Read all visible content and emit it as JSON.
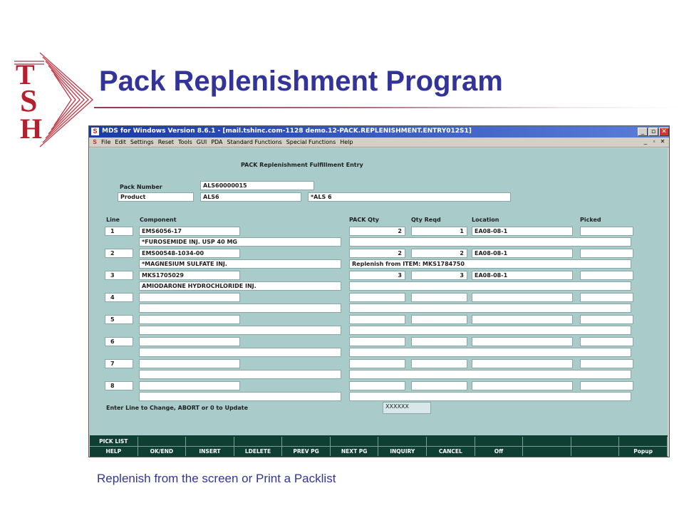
{
  "slide": {
    "title": "Pack Replenishment Program",
    "caption": "Replenish from the screen or Print a Packlist",
    "logo_letters": "TSH"
  },
  "window": {
    "title": "MDS for Windows Version 8.6.1 - [mail.tshinc.com-1128 demo.12-PACK.REPLENISHMENT.ENTRY012S1]",
    "controls": {
      "minimize": "_",
      "restore": "▫",
      "close": "✕"
    },
    "menu": [
      "File",
      "Edit",
      "Settings",
      "Reset",
      "Tools",
      "GUI",
      "PDA",
      "Standard Functions",
      "Special Functions",
      "Help"
    ],
    "mdi_controls": [
      "_",
      "▫",
      "✕"
    ]
  },
  "form": {
    "heading": "PACK Replenishment Fulfillment Entry",
    "pack_number_label": "Pack Number",
    "pack_number": "ALS60000015",
    "product_label": "Product",
    "product_code": "ALS6",
    "product_desc": "*ALS 6",
    "columns": {
      "line": "Line",
      "component": "Component",
      "pack_qty": "PACK Qty",
      "qty_reqd": "Qty Reqd",
      "location": "Location",
      "picked": "Picked"
    },
    "lines": [
      {
        "line": "1",
        "component": "EMS6056-17",
        "description": "*FUROSEMIDE INJ. USP 40 MG",
        "pack_qty": "2",
        "qty_reqd": "1",
        "location": "EA08-08-1",
        "picked": "",
        "note": ""
      },
      {
        "line": "2",
        "component": "EMS00548-1034-00",
        "description": "*MAGNESIUM SULFATE INJ.",
        "pack_qty": "2",
        "qty_reqd": "2",
        "location": "EA08-08-1",
        "picked": "",
        "note": "Replenish from ITEM: MKS1784750"
      },
      {
        "line": "3",
        "component": "MKS1705029",
        "description": "AMIODARONE HYDROCHLORIDE INJ.",
        "pack_qty": "3",
        "qty_reqd": "3",
        "location": "EA08-08-1",
        "picked": "",
        "note": ""
      },
      {
        "line": "4",
        "component": "",
        "description": "",
        "pack_qty": "",
        "qty_reqd": "",
        "location": "",
        "picked": "",
        "note": ""
      },
      {
        "line": "5",
        "component": "",
        "description": "",
        "pack_qty": "",
        "qty_reqd": "",
        "location": "",
        "picked": "",
        "note": ""
      },
      {
        "line": "6",
        "component": "",
        "description": "",
        "pack_qty": "",
        "qty_reqd": "",
        "location": "",
        "picked": "",
        "note": ""
      },
      {
        "line": "7",
        "component": "",
        "description": "",
        "pack_qty": "",
        "qty_reqd": "",
        "location": "",
        "picked": "",
        "note": ""
      },
      {
        "line": "8",
        "component": "",
        "description": "",
        "pack_qty": "",
        "qty_reqd": "",
        "location": "",
        "picked": "",
        "note": ""
      }
    ],
    "prompt": "Enter Line to Change, ABORT or 0 to Update",
    "input_value": "XXXXXX"
  },
  "function_keys": {
    "row1": [
      "PICK LIST",
      "",
      "",
      "",
      "",
      "",
      "",
      "",
      "",
      "",
      "",
      ""
    ],
    "row2": [
      "HELP",
      "OK/END",
      "INSERT",
      "LDELETE",
      "PREV PG",
      "NEXT PG",
      "INQUIRY",
      "CANCEL",
      "Off",
      "",
      "",
      "Popup"
    ]
  },
  "colors": {
    "title_blue": "#33349a",
    "logo_red": "#b5202e",
    "form_background": "#a9cccb",
    "fkey_background": "#0f3e32"
  }
}
